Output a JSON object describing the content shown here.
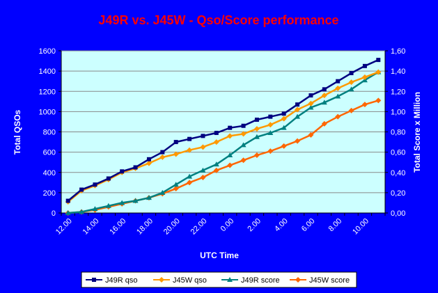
{
  "chart_data": {
    "type": "line",
    "title": "J49R vs. J45W  - Qso/Score performance",
    "xlabel": "UTC Time",
    "ylabel_left": "Total QSOs",
    "ylabel_right": "Total Score x Million",
    "categories": [
      "12.00",
      "13.00",
      "14.00",
      "15.00",
      "16.00",
      "17.00",
      "18.00",
      "19.00",
      "20.00",
      "21.00",
      "22.00",
      "23.00",
      "0.00",
      "1.00",
      "2.00",
      "3.00",
      "4.00",
      "5.00",
      "6.00",
      "7.00",
      "8.00",
      "9.00",
      "10.00",
      "11.00"
    ],
    "x_tick_labels": [
      "12.00",
      "14.00",
      "16.00",
      "18.00",
      "20.00",
      "22.00",
      "0.00",
      "2.00",
      "4.00",
      "6.00",
      "8.00",
      "10.00"
    ],
    "y_left_ticks": [
      "0",
      "200",
      "400",
      "600",
      "800",
      "1000",
      "1200",
      "1400",
      "1600"
    ],
    "y_right_ticks": [
      "0,00",
      "0,20",
      "0,40",
      "0,60",
      "0,80",
      "1,00",
      "1,20",
      "1,40",
      "1,60"
    ],
    "ylim_left": [
      0,
      1600
    ],
    "ylim_right": [
      0,
      1.6
    ],
    "series": [
      {
        "name": "J49R qso",
        "axis": "left",
        "color": "#000080",
        "marker": "square",
        "values": [
          120,
          230,
          280,
          340,
          410,
          450,
          530,
          600,
          700,
          730,
          760,
          790,
          840,
          860,
          920,
          950,
          980,
          1070,
          1160,
          1220,
          1300,
          1380,
          1450,
          1510
        ]
      },
      {
        "name": "J45W qso",
        "axis": "left",
        "color": "#FF9900",
        "marker": "diamond",
        "values": [
          110,
          220,
          270,
          330,
          400,
          440,
          490,
          550,
          580,
          620,
          650,
          700,
          760,
          780,
          830,
          870,
          930,
          1020,
          1080,
          1160,
          1230,
          1290,
          1340,
          1390
        ]
      },
      {
        "name": "J49R score",
        "axis": "right",
        "color": "#008080",
        "marker": "triangle",
        "values": [
          0.0,
          0.01,
          0.04,
          0.07,
          0.1,
          0.12,
          0.15,
          0.2,
          0.28,
          0.36,
          0.42,
          0.48,
          0.57,
          0.67,
          0.75,
          0.79,
          0.84,
          0.95,
          1.04,
          1.09,
          1.15,
          1.22,
          1.31,
          1.39
        ]
      },
      {
        "name": "J45W score",
        "axis": "right",
        "color": "#FF6600",
        "marker": "diamond",
        "values": [
          0.0,
          0.01,
          0.03,
          0.06,
          0.09,
          0.12,
          0.15,
          0.19,
          0.24,
          0.3,
          0.35,
          0.42,
          0.47,
          0.52,
          0.57,
          0.61,
          0.66,
          0.71,
          0.77,
          0.88,
          0.95,
          1.01,
          1.07,
          1.11
        ]
      }
    ],
    "colors": {
      "background": "#0000FF",
      "plot_area": "#CCFFFF",
      "title": "#FF0000",
      "axis_text": "#FFFFFF",
      "legend_bg": "#FFFFFF",
      "axis_line": "#000000",
      "grid": "#888888"
    }
  }
}
